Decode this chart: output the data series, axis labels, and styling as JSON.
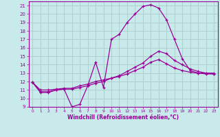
{
  "xlabel": "Windchill (Refroidissement éolien,°C)",
  "bg_color": "#c8eaea",
  "grid_color": "#b0d0d0",
  "line_color": "#990099",
  "xlim": [
    -0.5,
    23.5
  ],
  "ylim": [
    9,
    21.5
  ],
  "xticks": [
    0,
    1,
    2,
    3,
    4,
    5,
    6,
    7,
    8,
    9,
    10,
    11,
    12,
    13,
    14,
    15,
    16,
    17,
    18,
    19,
    20,
    21,
    22,
    23
  ],
  "yticks": [
    9,
    10,
    11,
    12,
    13,
    14,
    15,
    16,
    17,
    18,
    19,
    20,
    21
  ],
  "line1_x": [
    0,
    1,
    2,
    3,
    4,
    5,
    6,
    7,
    8,
    9,
    10,
    11,
    12,
    13,
    14,
    15,
    16,
    17,
    18,
    19,
    20,
    21,
    22,
    23
  ],
  "line1_y": [
    11.9,
    10.7,
    10.7,
    11.0,
    11.1,
    9.0,
    9.3,
    11.5,
    14.3,
    11.3,
    17.0,
    17.6,
    19.0,
    20.0,
    20.9,
    21.1,
    20.7,
    19.3,
    17.0,
    14.7,
    13.3,
    13.0,
    13.0,
    13.0
  ],
  "line2_x": [
    0,
    1,
    2,
    3,
    4,
    5,
    6,
    7,
    8,
    9,
    10,
    11,
    12,
    13,
    14,
    15,
    16,
    17,
    18,
    19,
    20,
    21,
    22,
    23
  ],
  "line2_y": [
    11.9,
    10.8,
    10.8,
    11.0,
    11.1,
    11.1,
    11.3,
    11.5,
    11.8,
    12.0,
    12.4,
    12.7,
    13.2,
    13.7,
    14.2,
    15.0,
    15.6,
    15.3,
    14.5,
    14.0,
    13.5,
    13.2,
    13.0,
    12.9
  ],
  "line3_x": [
    0,
    1,
    2,
    3,
    4,
    5,
    6,
    7,
    8,
    9,
    10,
    11,
    12,
    13,
    14,
    15,
    16,
    17,
    18,
    19,
    20,
    21,
    22,
    23
  ],
  "line3_y": [
    11.9,
    11.0,
    11.0,
    11.1,
    11.2,
    11.2,
    11.5,
    11.7,
    12.0,
    12.2,
    12.4,
    12.6,
    12.9,
    13.3,
    13.7,
    14.3,
    14.6,
    14.1,
    13.6,
    13.3,
    13.1,
    13.0,
    12.9,
    12.9
  ]
}
